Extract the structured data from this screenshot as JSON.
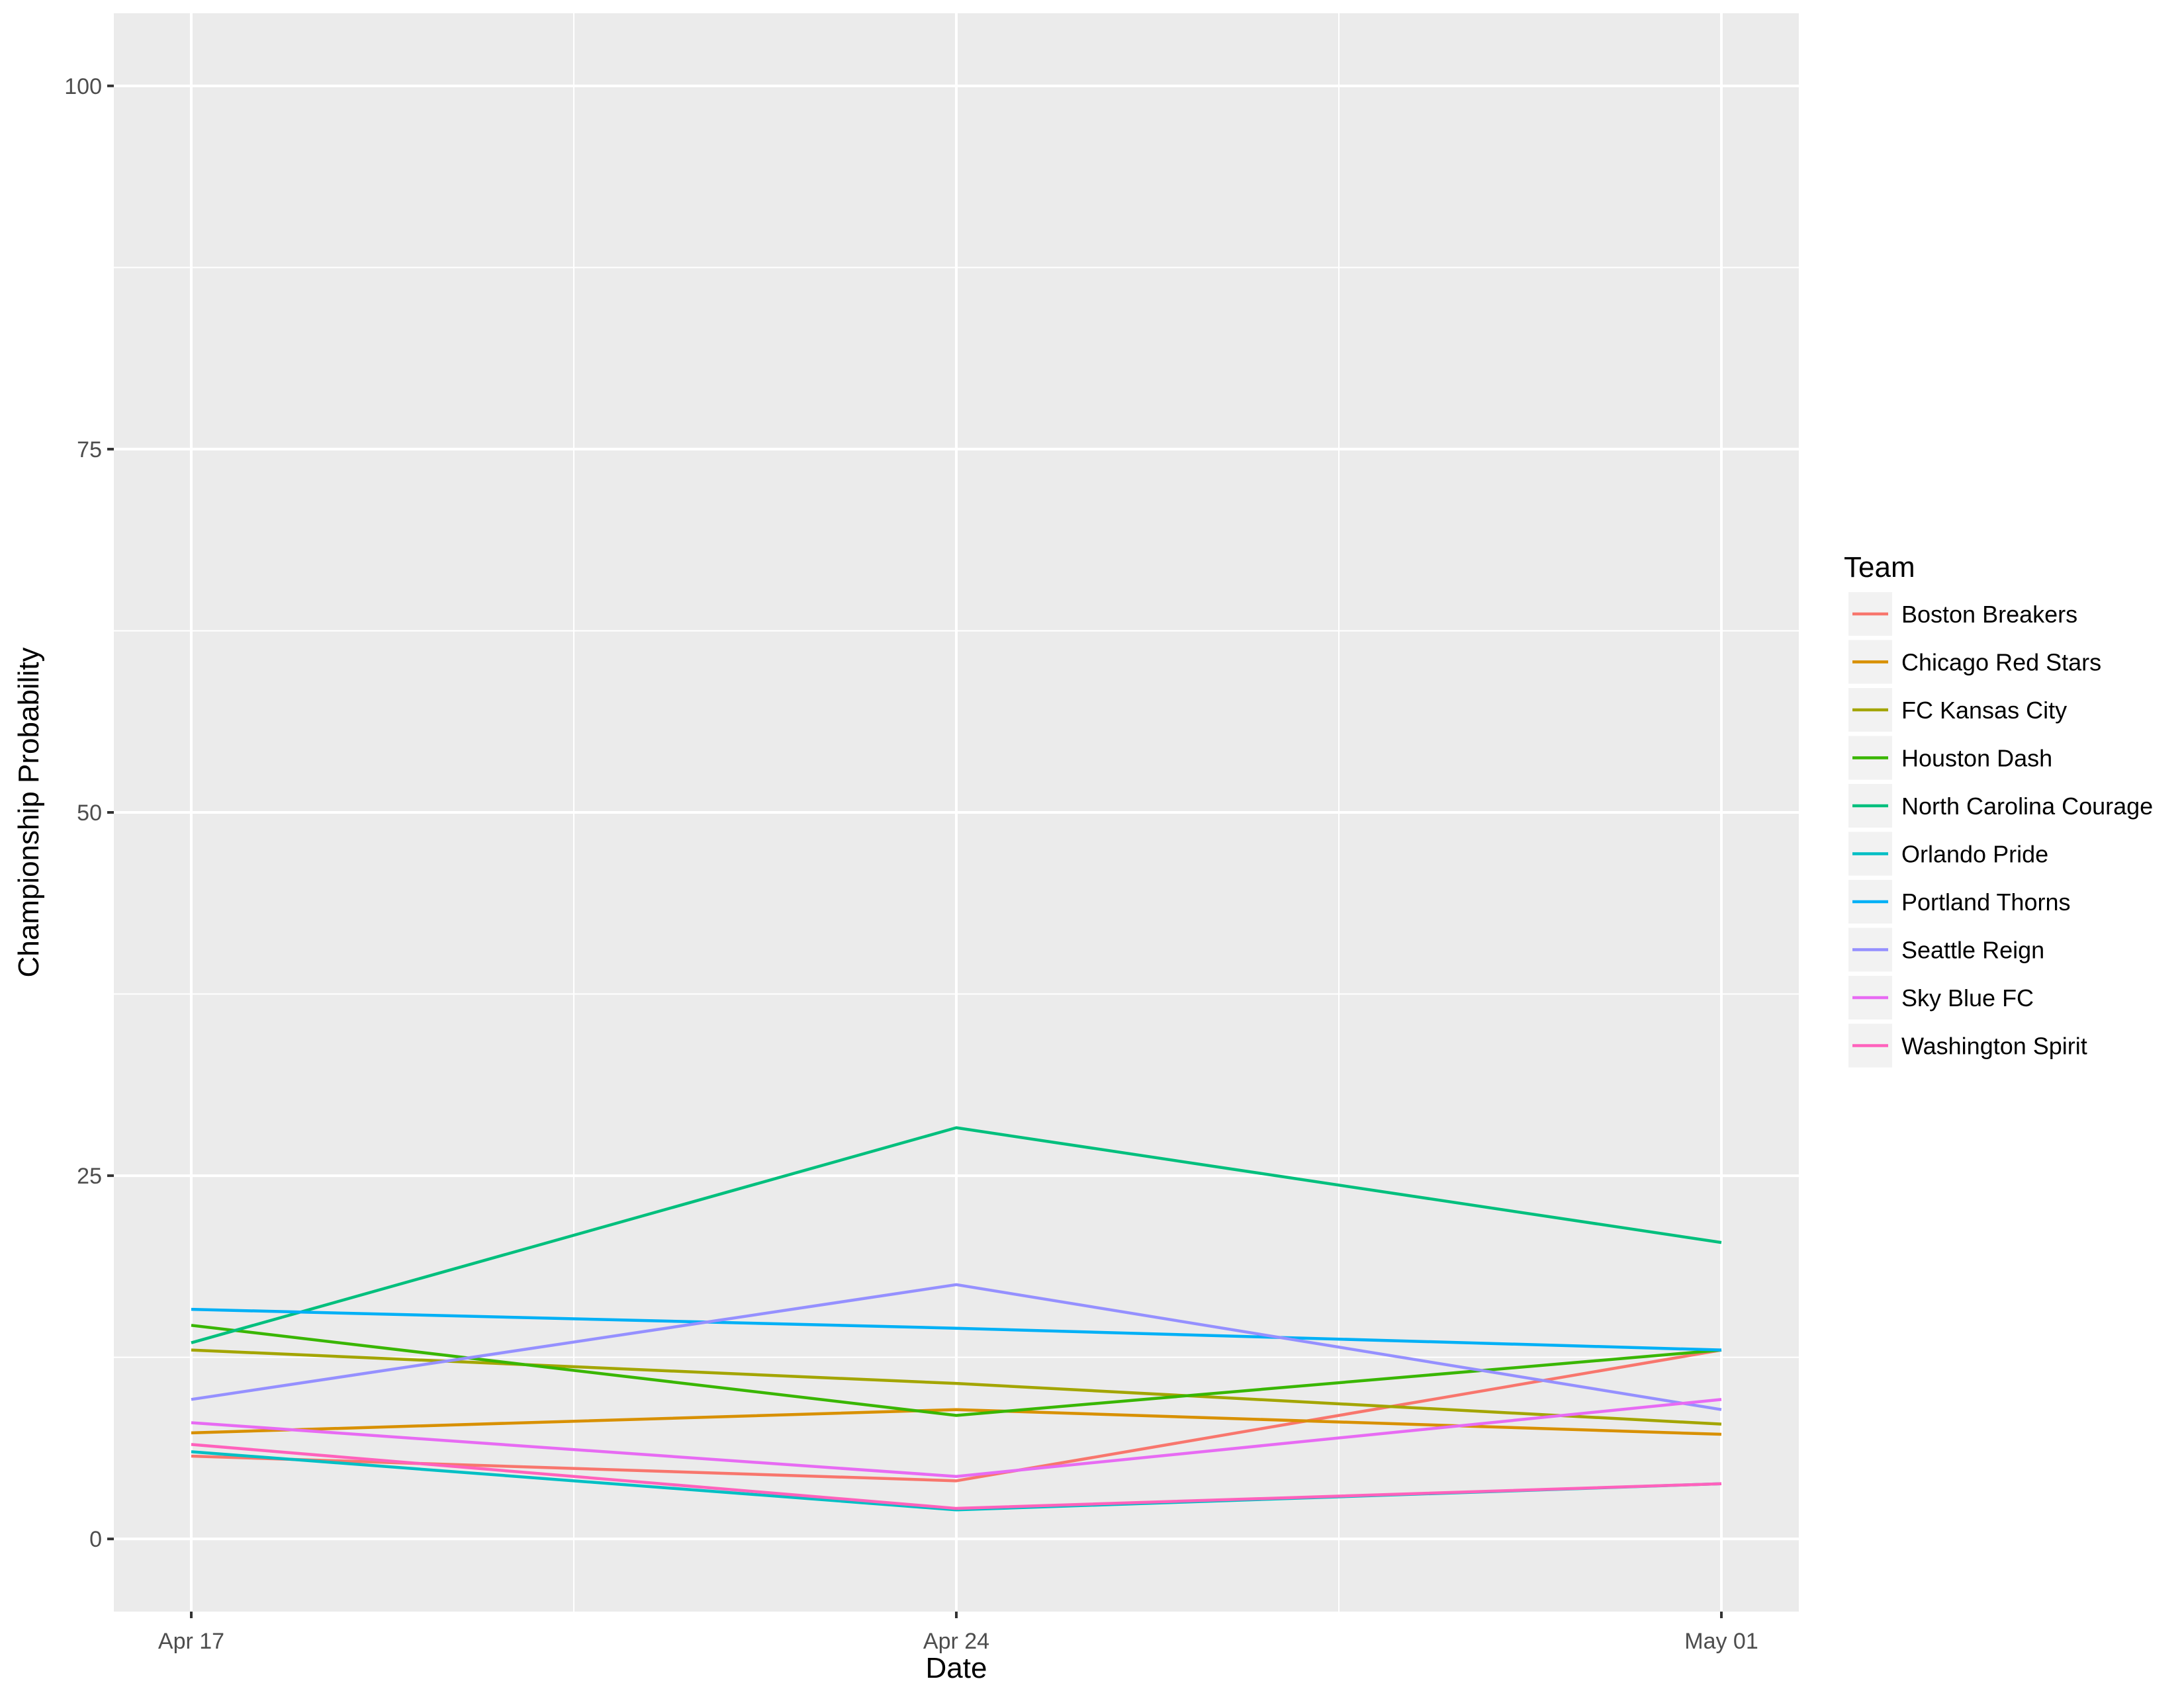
{
  "chart_data": {
    "type": "line",
    "x": [
      "Apr 17",
      "Apr 24",
      "May 01"
    ],
    "xlabel": "Date",
    "ylabel": "Championship Probability",
    "ylim": [
      -5,
      105
    ],
    "yticks": [
      0,
      25,
      50,
      75,
      100
    ],
    "grid": true,
    "legend": {
      "title": "Team",
      "position": "right"
    },
    "series": [
      {
        "name": "Boston Breakers",
        "color": "#F8766D",
        "values": [
          5.7,
          4.0,
          13.0
        ]
      },
      {
        "name": "Chicago Red Stars",
        "color": "#D89000",
        "values": [
          7.3,
          8.9,
          7.2
        ]
      },
      {
        "name": "FC Kansas City",
        "color": "#A3A500",
        "values": [
          13.0,
          10.7,
          7.9
        ]
      },
      {
        "name": "Houston Dash",
        "color": "#39B600",
        "values": [
          14.7,
          8.5,
          13.0
        ]
      },
      {
        "name": "North Carolina Courage",
        "color": "#00BF7D",
        "values": [
          13.5,
          28.3,
          20.4
        ]
      },
      {
        "name": "Orlando Pride",
        "color": "#00BFC4",
        "values": [
          6.0,
          2.0,
          3.8
        ]
      },
      {
        "name": "Portland Thorns",
        "color": "#00B0F6",
        "values": [
          15.8,
          14.5,
          13.0
        ]
      },
      {
        "name": "Seattle Reign",
        "color": "#9590FF",
        "values": [
          9.6,
          17.5,
          8.9
        ]
      },
      {
        "name": "Sky Blue FC",
        "color": "#E76BF3",
        "values": [
          8.0,
          4.3,
          9.6
        ]
      },
      {
        "name": "Washington Spirit",
        "color": "#FF62BC",
        "values": [
          6.5,
          2.1,
          3.8
        ]
      }
    ]
  }
}
